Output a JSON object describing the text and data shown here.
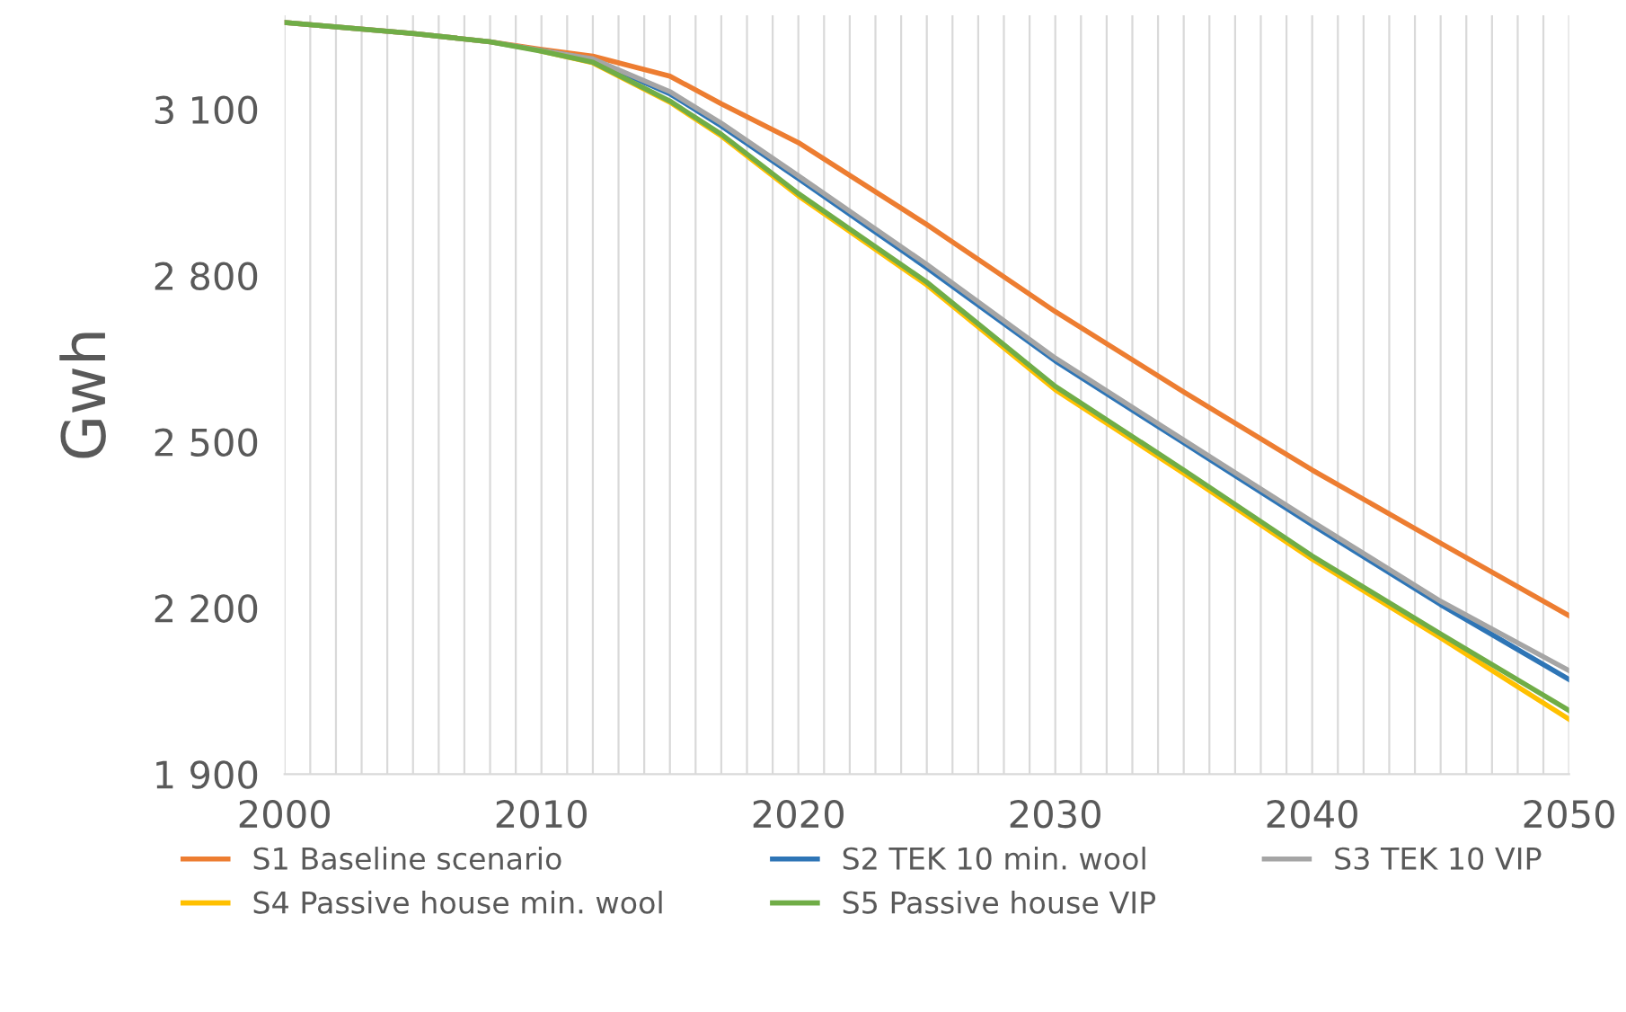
{
  "chart_data": {
    "type": "line",
    "ylabel": "Gwh",
    "x": [
      2000,
      2005,
      2008,
      2010,
      2012,
      2015,
      2017,
      2020,
      2025,
      2030,
      2035,
      2040,
      2045,
      2050
    ],
    "xlim": [
      2000,
      2050
    ],
    "xticks": [
      2000,
      2010,
      2020,
      2030,
      2040,
      2050
    ],
    "ylim": [
      1900,
      3270
    ],
    "yticks": [
      {
        "value": 1900,
        "label": "1 900"
      },
      {
        "value": 2200,
        "label": "2 200"
      },
      {
        "value": 2500,
        "label": "2 500"
      },
      {
        "value": 2800,
        "label": "2 800"
      },
      {
        "value": 3100,
        "label": "3 100"
      }
    ],
    "grid": "x",
    "legend": "bottom",
    "marker": "none",
    "line_style": "solid",
    "series": [
      {
        "name": "S1 Baseline scenario",
        "color": "#ed7d31",
        "values": [
          3257,
          3237,
          3222,
          3208,
          3196,
          3160,
          3110,
          3040,
          2892,
          2735,
          2590,
          2449,
          2317,
          2186
        ]
      },
      {
        "name": "S2 TEK 10 min. wool",
        "color": "#2e75b6",
        "values": [
          null,
          null,
          null,
          3206,
          3190,
          3128,
          3070,
          2975,
          2814,
          2646,
          2498,
          2350,
          2206,
          2071
        ]
      },
      {
        "name": "S3 TEK 10 VIP",
        "color": "#a5a5a5",
        "values": [
          3257,
          3237,
          3222,
          3206,
          3191,
          3132,
          3075,
          2980,
          2820,
          2651,
          2503,
          2356,
          2212,
          2087
        ]
      },
      {
        "name": "S4 Passive house min. wool",
        "color": "#ffc000",
        "values": [
          null,
          null,
          null,
          3205,
          3184,
          3113,
          3052,
          2944,
          2783,
          2594,
          2443,
          2288,
          2146,
          1999
        ]
      },
      {
        "name": "S5 Passive house VIP",
        "color": "#70ad47",
        "values": [
          3257,
          3237,
          3222,
          3205,
          3185,
          3115,
          3055,
          2948,
          2788,
          2600,
          2449,
          2294,
          2153,
          2015
        ]
      }
    ]
  }
}
